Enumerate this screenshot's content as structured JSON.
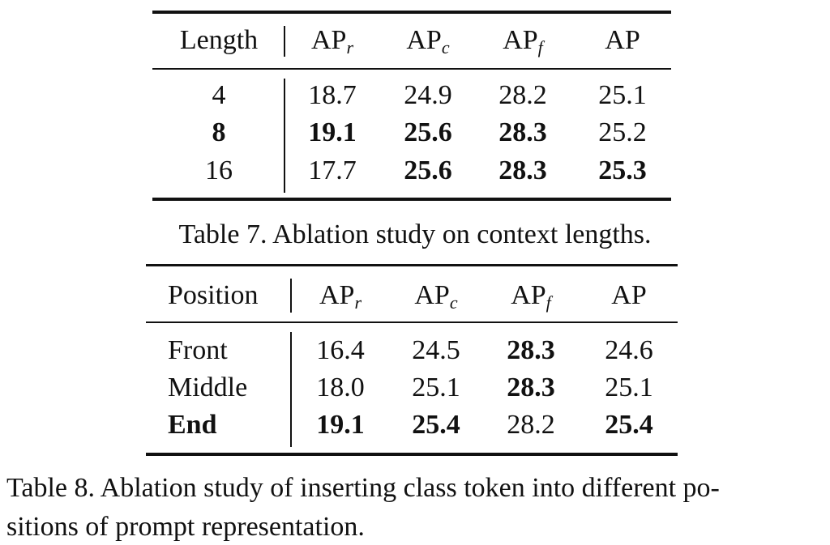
{
  "tables": [
    {
      "header": [
        {
          "text": "Length"
        },
        {
          "text": "AP",
          "sub": "r"
        },
        {
          "text": "AP",
          "sub": "c"
        },
        {
          "text": "AP",
          "sub": "f"
        },
        {
          "text": "AP"
        }
      ],
      "rows": [
        {
          "cells": [
            "4",
            "18.7",
            "24.9",
            "28.2",
            "25.1"
          ],
          "bold": [
            false,
            false,
            false,
            false,
            false
          ]
        },
        {
          "cells": [
            "8",
            "19.1",
            "25.6",
            "28.3",
            "25.2"
          ],
          "bold": [
            true,
            true,
            true,
            true,
            false
          ]
        },
        {
          "cells": [
            "16",
            "17.7",
            "25.6",
            "28.3",
            "25.3"
          ],
          "bold": [
            false,
            false,
            true,
            true,
            true
          ]
        }
      ],
      "caption": [
        "Table 7. Ablation study on context lengths."
      ]
    },
    {
      "header": [
        {
          "text": "Position"
        },
        {
          "text": "AP",
          "sub": "r"
        },
        {
          "text": "AP",
          "sub": "c"
        },
        {
          "text": "AP",
          "sub": "f"
        },
        {
          "text": "AP"
        }
      ],
      "rows": [
        {
          "cells": [
            "Front",
            "16.4",
            "24.5",
            "28.3",
            "24.6"
          ],
          "bold": [
            false,
            false,
            false,
            true,
            false
          ]
        },
        {
          "cells": [
            "Middle",
            "18.0",
            "25.1",
            "28.3",
            "25.1"
          ],
          "bold": [
            false,
            false,
            false,
            true,
            false
          ]
        },
        {
          "cells": [
            "End",
            "19.1",
            "25.4",
            "28.2",
            "25.4"
          ],
          "bold": [
            true,
            true,
            true,
            false,
            true
          ]
        }
      ],
      "caption": [
        "Table 8. Ablation study of inserting class token into different po-",
        "sitions of prompt representation."
      ]
    }
  ]
}
